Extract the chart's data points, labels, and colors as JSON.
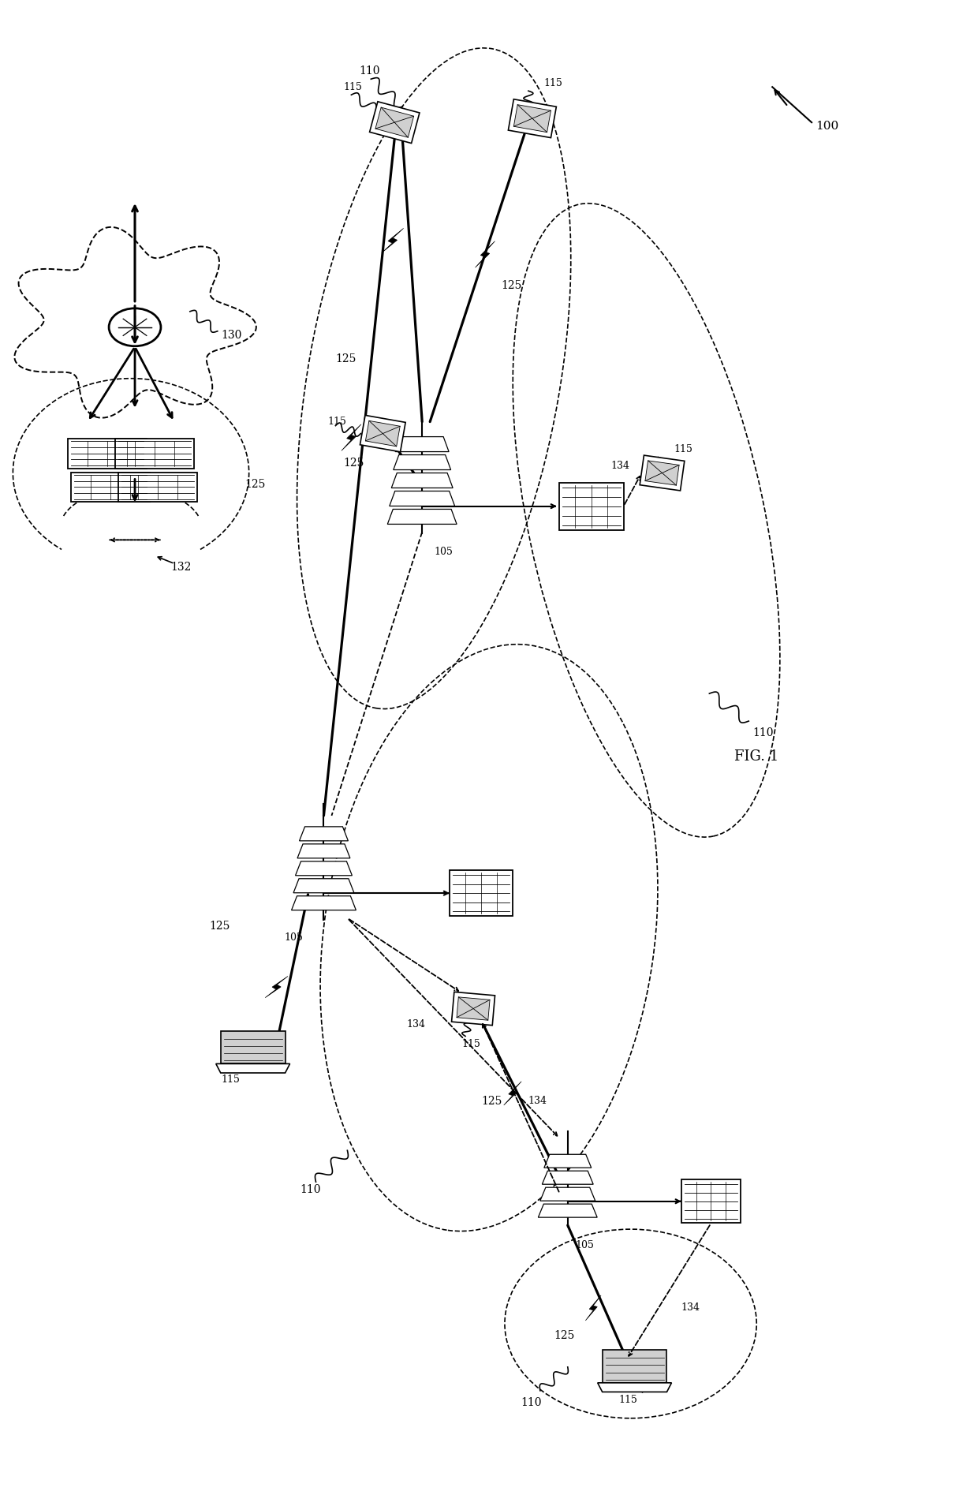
{
  "bg_color": "#ffffff",
  "fig_width": 12.4,
  "fig_height": 19.09,
  "labels": [
    "100",
    "105",
    "110",
    "115",
    "125",
    "130",
    "132",
    "134",
    "FIG. 1"
  ]
}
